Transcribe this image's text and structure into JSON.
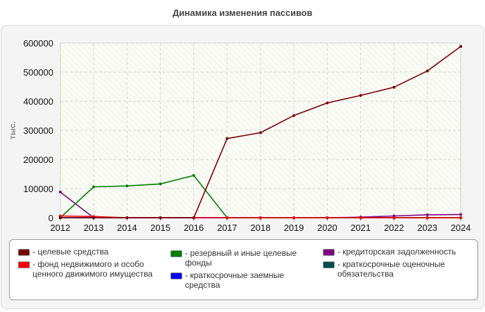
{
  "title": "Динамика изменения пассивов",
  "chart_data": {
    "type": "line",
    "x": [
      2012,
      2013,
      2014,
      2015,
      2016,
      2017,
      2018,
      2019,
      2020,
      2021,
      2022,
      2023,
      2024
    ],
    "ylabel": "тыс.",
    "ylim": [
      0,
      600000
    ],
    "yticks": [
      "0",
      "100000",
      "200000",
      "300000",
      "400000",
      "500000",
      "600000"
    ],
    "xticks": [
      "2012",
      "2013",
      "2014",
      "2015",
      "2016",
      "2017",
      "2018",
      "2019",
      "2020",
      "2021",
      "2022",
      "2023",
      "2024"
    ],
    "grid": true,
    "legend_position": "bottom",
    "series": [
      {
        "name": "- целевые средства",
        "color": "#7a0000",
        "values": [
          0,
          0,
          0,
          0,
          0,
          272000,
          292000,
          351000,
          394000,
          420000,
          448000,
          504000,
          588000
        ]
      },
      {
        "name": "- фонд недвижимого и особо ценного движимого имущества",
        "color": "#ff0000",
        "values": [
          6000,
          4000,
          0,
          0,
          0,
          0,
          0,
          0,
          0,
          0,
          0,
          0,
          0
        ]
      },
      {
        "name": "- резервный и иные целевые фонды",
        "color": "#008000",
        "values": [
          0,
          106000,
          109000,
          116000,
          145000,
          0,
          0,
          0,
          0,
          0,
          0,
          0,
          0
        ]
      },
      {
        "name": "- краткосрочные заемные средства",
        "color": "#0000ff",
        "values": [
          0,
          0,
          0,
          0,
          0,
          0,
          0,
          0,
          0,
          0,
          0,
          0,
          0
        ]
      },
      {
        "name": "- кредиторская задолженность",
        "color": "#800080",
        "values": [
          88000,
          0,
          0,
          0,
          0,
          0,
          0,
          0,
          0,
          2000,
          6000,
          10000,
          11000
        ]
      },
      {
        "name": "- краткосрочные оценочные обязательства",
        "color": "#004d4d",
        "values": [
          0,
          0,
          0,
          0,
          0,
          0,
          0,
          0,
          0,
          0,
          0,
          0,
          0
        ]
      }
    ]
  }
}
